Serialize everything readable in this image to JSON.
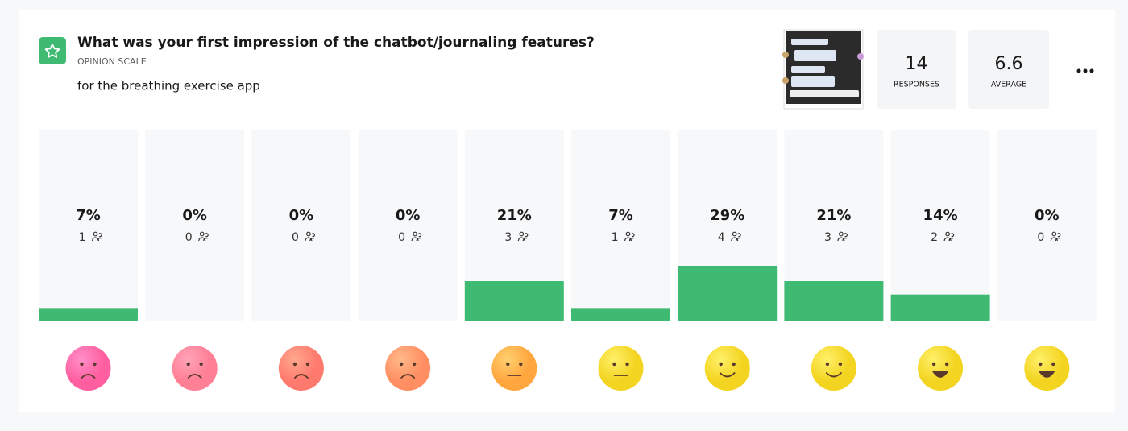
{
  "header": {
    "title": "What was your first impression of the chatbot/journaling features?",
    "question_type": "OPINION SCALE",
    "description": "for the breathing exercise app"
  },
  "stats": [
    {
      "value": 14,
      "label": "RESPONSES"
    },
    {
      "value": 6.6,
      "label": "AVERAGE"
    }
  ],
  "chart_data": {
    "type": "bar",
    "color": "#3fba73",
    "values": [
      7,
      0,
      0,
      0,
      21,
      7,
      29,
      21,
      14,
      0
    ],
    "value_labels": [
      "7%",
      "0%",
      "0%",
      "0%",
      "21%",
      "7%",
      "29%",
      "21%",
      "14%",
      "0%"
    ],
    "counts": [
      1,
      0,
      0,
      0,
      3,
      1,
      4,
      3,
      2,
      0
    ],
    "ylim": [
      0,
      100
    ]
  }
}
